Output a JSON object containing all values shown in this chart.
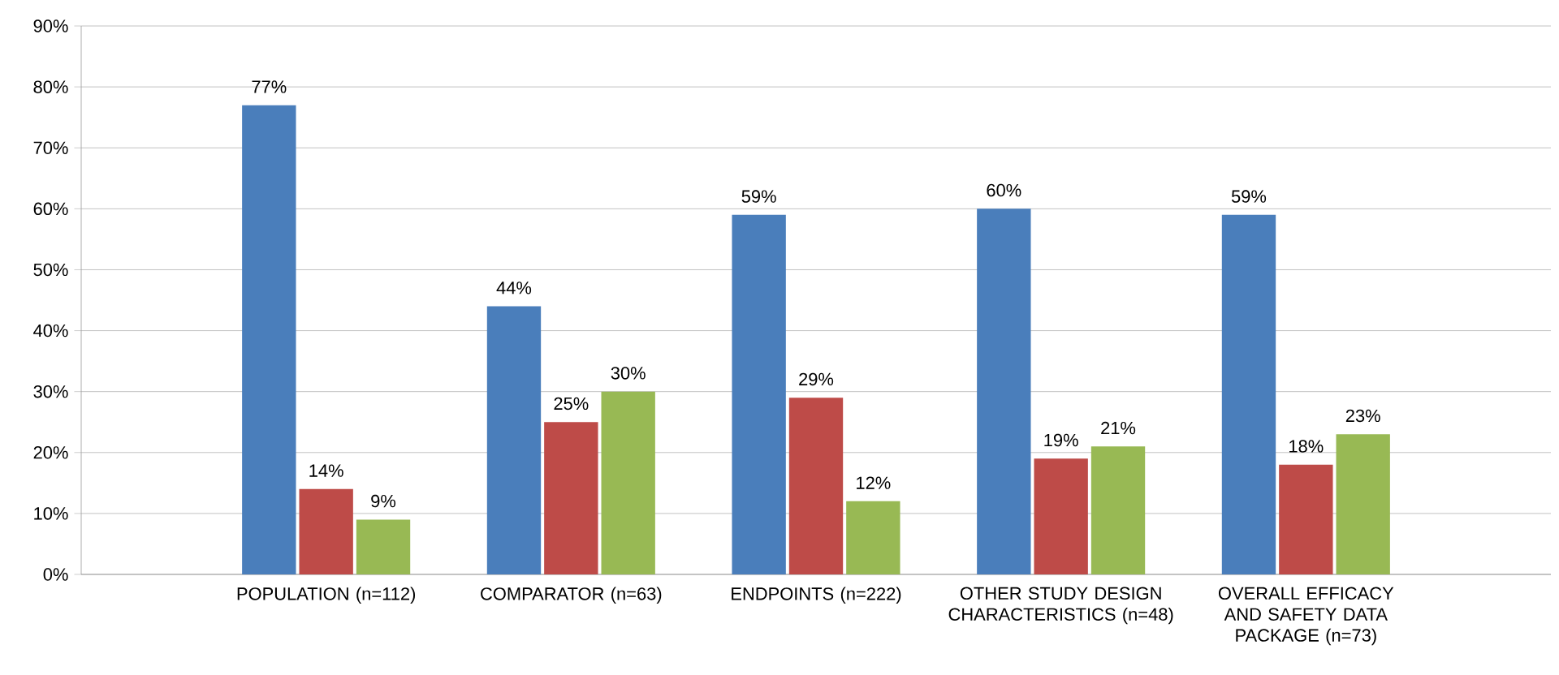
{
  "chart_data": {
    "type": "bar",
    "categories": [
      "POPULATION (n=112)",
      "COMPARATOR (n=63)",
      "ENDPOINTS (n=222)",
      "OTHER STUDY DESIGN CHARACTERISTICS (n=48)",
      "OVERALL EFFICACY AND SAFETY DATA PACKAGE (n=73)"
    ],
    "series": [
      {
        "color": "#4a7ebb",
        "values": [
          77,
          44,
          59,
          60,
          59
        ],
        "value_labels": [
          "77%",
          "44%",
          "59%",
          "60%",
          "59%"
        ]
      },
      {
        "color": "#be4b48",
        "values": [
          14,
          25,
          29,
          19,
          18
        ],
        "value_labels": [
          "14%",
          "25%",
          "29%",
          "19%",
          "18%"
        ]
      },
      {
        "color": "#98b954",
        "values": [
          9,
          30,
          12,
          21,
          23
        ],
        "value_labels": [
          "9%",
          "30%",
          "12%",
          "21%",
          "23%"
        ]
      }
    ],
    "ylim": [
      0,
      90
    ],
    "yticks": [
      {
        "value": 0,
        "label": "0%"
      },
      {
        "value": 10,
        "label": "10%"
      },
      {
        "value": 20,
        "label": "20%"
      },
      {
        "value": 30,
        "label": "30%"
      },
      {
        "value": 40,
        "label": "40%"
      },
      {
        "value": 50,
        "label": "50%"
      },
      {
        "value": 60,
        "label": "60%"
      },
      {
        "value": 70,
        "label": "70%"
      },
      {
        "value": 80,
        "label": "80%"
      },
      {
        "value": 90,
        "label": "90%"
      }
    ],
    "grid": "y"
  }
}
